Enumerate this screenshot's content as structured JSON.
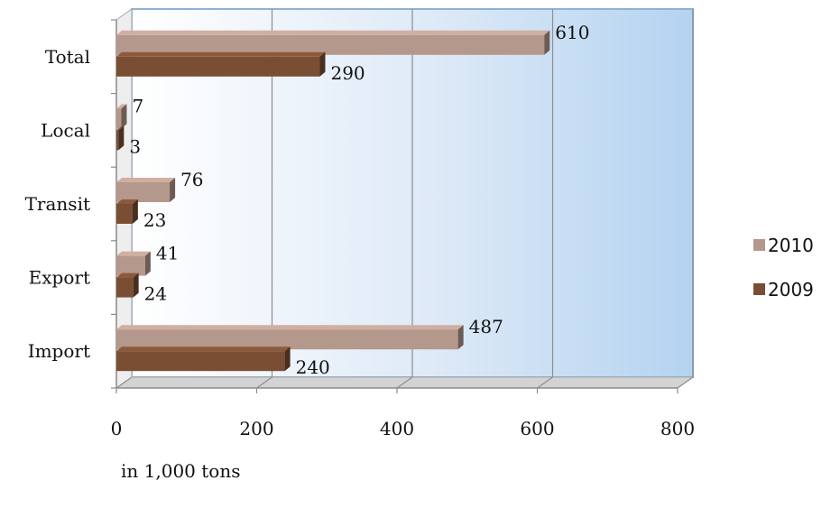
{
  "chart_data": {
    "type": "bar",
    "orientation": "horizontal",
    "categories": [
      "Total",
      "Local",
      "Transit",
      "Export",
      "Import"
    ],
    "series": [
      {
        "name": "2010",
        "values": [
          610,
          7,
          76,
          41,
          487
        ],
        "color": "#b5988c"
      },
      {
        "name": "2009",
        "values": [
          290,
          3,
          23,
          24,
          240
        ],
        "color": "#7a4e33"
      }
    ],
    "xlabel": "in 1,000 tons",
    "xlim": [
      0,
      800
    ],
    "xticks": [
      0,
      200,
      400,
      600,
      800
    ],
    "grid": true,
    "legend": "right",
    "style": "3d"
  }
}
